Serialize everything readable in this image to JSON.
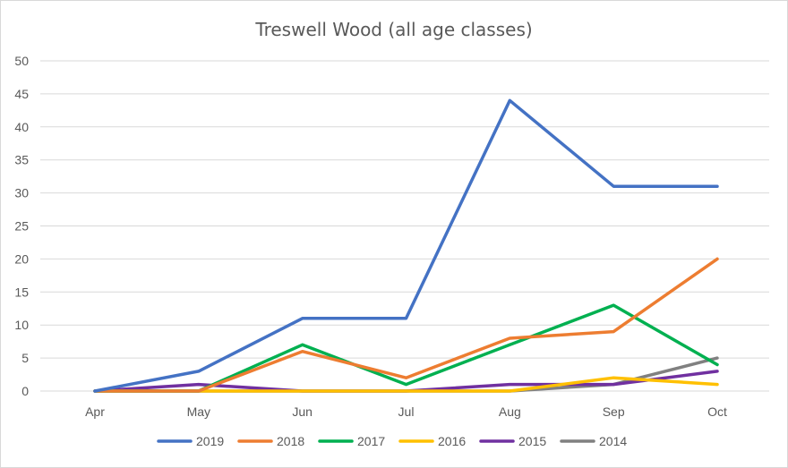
{
  "chart_data": {
    "type": "line",
    "title": "Treswell Wood (all age classes)",
    "xlabel": "",
    "ylabel": "",
    "categories": [
      "Apr",
      "May",
      "Jun",
      "Jul",
      "Aug",
      "Sep",
      "Oct"
    ],
    "ylim": [
      0,
      50
    ],
    "yticks": [
      0,
      5,
      10,
      15,
      20,
      25,
      30,
      35,
      40,
      45,
      50
    ],
    "grid": true,
    "legend_position": "bottom",
    "series": [
      {
        "name": "2019",
        "color": "#4472c4",
        "values": [
          0,
          3,
          11,
          11,
          44,
          31,
          31
        ]
      },
      {
        "name": "2018",
        "color": "#ed7d31",
        "values": [
          0,
          0,
          6,
          2,
          8,
          9,
          20
        ]
      },
      {
        "name": "2017",
        "color": "#00b050",
        "values": [
          0,
          0,
          7,
          1,
          7,
          13,
          4
        ]
      },
      {
        "name": "2016",
        "color": "#ffc000",
        "values": [
          0,
          0,
          0,
          0,
          0,
          2,
          1
        ]
      },
      {
        "name": "2015",
        "color": "#7030a0",
        "values": [
          0,
          1,
          0,
          0,
          1,
          1,
          3
        ]
      },
      {
        "name": "2014",
        "color": "#808080",
        "values": [
          0,
          0,
          0,
          0,
          0,
          1,
          5
        ]
      }
    ]
  }
}
